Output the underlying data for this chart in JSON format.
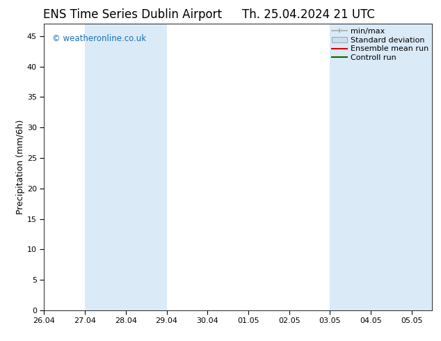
{
  "title_left": "ENS Time Series Dublin Airport",
  "title_right": "Th. 25.04.2024 21 UTC",
  "ylabel": "Precipitation (mm/6h)",
  "watermark": "© weatheronline.co.uk",
  "bg_color": "#ffffff",
  "plot_bg_color": "#ffffff",
  "ylim": [
    0,
    47
  ],
  "yticks": [
    0,
    5,
    10,
    15,
    20,
    25,
    30,
    35,
    40,
    45
  ],
  "xtick_positions": [
    0,
    1,
    2,
    3,
    4,
    5,
    6,
    7,
    8,
    9
  ],
  "xtick_labels": [
    "26.04",
    "27.04",
    "28.04",
    "29.04",
    "30.04",
    "01.05",
    "02.05",
    "03.05",
    "04.05",
    "05.05"
  ],
  "xlim_start": -0.0,
  "xlim_end": 9.5,
  "shaded_bands": [
    {
      "x_start": 1.0,
      "x_end": 2.0,
      "color": "#daeaf7"
    },
    {
      "x_start": 2.0,
      "x_end": 3.0,
      "color": "#daeaf7"
    },
    {
      "x_start": 7.0,
      "x_end": 8.0,
      "color": "#daeaf7"
    },
    {
      "x_start": 8.0,
      "x_end": 9.0,
      "color": "#daeaf7"
    },
    {
      "x_start": 9.0,
      "x_end": 9.5,
      "color": "#daeaf7"
    }
  ],
  "legend_items": [
    {
      "label": "min/max",
      "color": "#aaaaaa",
      "type": "errorbar"
    },
    {
      "label": "Standard deviation",
      "color": "#ccdded",
      "type": "box"
    },
    {
      "label": "Ensemble mean run",
      "color": "#dd0000",
      "type": "line"
    },
    {
      "label": "Controll run",
      "color": "#006600",
      "type": "line"
    }
  ],
  "title_fontsize": 12,
  "axis_label_fontsize": 9,
  "watermark_color": "#1a6faf",
  "tick_label_fontsize": 8,
  "legend_fontsize": 8
}
